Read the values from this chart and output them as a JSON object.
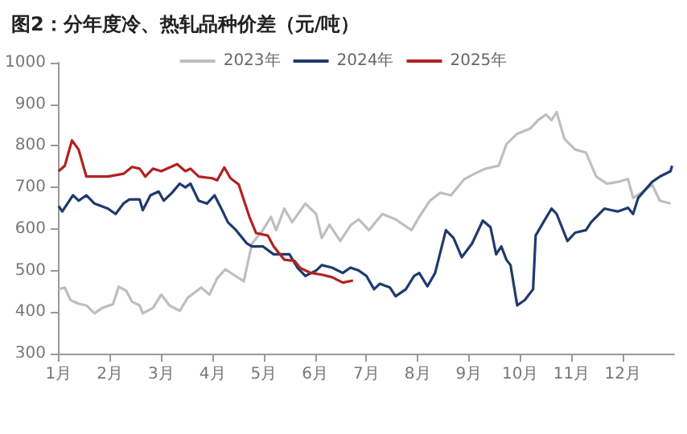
{
  "chart_data": {
    "type": "line",
    "title": "图2：分年度冷、热轧品种价差（元/吨）",
    "xlim": [
      1,
      13
    ],
    "xticks": [
      {
        "value": 1,
        "label": "1月"
      },
      {
        "value": 2,
        "label": "2月"
      },
      {
        "value": 3,
        "label": "3月"
      },
      {
        "value": 4,
        "label": "4月"
      },
      {
        "value": 5,
        "label": "5月"
      },
      {
        "value": 6,
        "label": "6月"
      },
      {
        "value": 7,
        "label": "7月"
      },
      {
        "value": 8,
        "label": "8月"
      },
      {
        "value": 9,
        "label": "9月"
      },
      {
        "value": 10,
        "label": "10月"
      },
      {
        "value": 11,
        "label": "11月"
      },
      {
        "value": 12,
        "label": "12月"
      }
    ],
    "ylim": [
      300,
      1000
    ],
    "yticks": [
      300,
      400,
      500,
      600,
      700,
      800,
      900,
      1000
    ],
    "grid": false,
    "legend": "top",
    "marker": "none",
    "line_style": "solid",
    "series": [
      {
        "name": "2023年",
        "color": "#bfbfbf",
        "x": [
          1,
          1.12,
          1.23,
          1.39,
          1.54,
          1.7,
          1.85,
          2.06,
          2.17,
          2.32,
          2.43,
          2.58,
          2.64,
          2.84,
          3.0,
          3.16,
          3.36,
          3.52,
          3.78,
          3.94,
          4.09,
          4.25,
          4.41,
          4.61,
          4.77,
          4.98,
          5.14,
          5.24,
          5.4,
          5.55,
          5.81,
          6.02,
          6.13,
          6.28,
          6.49,
          6.7,
          6.85,
          7.05,
          7.31,
          7.57,
          7.88,
          8.03,
          8.24,
          8.44,
          8.65,
          8.91,
          9.11,
          9.32,
          9.58,
          9.73,
          9.94,
          10.2,
          10.35,
          10.5,
          10.61,
          10.71,
          10.86,
          11.07,
          11.28,
          11.48,
          11.69,
          11.9,
          12.1,
          12.2,
          12.36,
          12.57,
          12.72,
          12.93
        ],
        "values": [
          455,
          459,
          429,
          420,
          416,
          397,
          410,
          419,
          461,
          451,
          425,
          416,
          397,
          410,
          442,
          416,
          403,
          435,
          459,
          442,
          481,
          503,
          490,
          474,
          565,
          597,
          629,
          597,
          649,
          616,
          661,
          636,
          578,
          610,
          571,
          610,
          623,
          597,
          636,
          623,
          597,
          629,
          668,
          687,
          681,
          720,
          733,
          745,
          752,
          804,
          829,
          842,
          862,
          875,
          862,
          881,
          817,
          791,
          784,
          726,
          709,
          713,
          720,
          675,
          687,
          707,
          668,
          661
        ]
      },
      {
        "name": "2024年",
        "color": "#1f3a6e",
        "x": [
          1,
          1.07,
          1.28,
          1.39,
          1.54,
          1.7,
          1.96,
          2.11,
          2.27,
          2.38,
          2.58,
          2.64,
          2.79,
          2.95,
          3.05,
          3.21,
          3.36,
          3.47,
          3.57,
          3.73,
          3.89,
          4.04,
          4.2,
          4.3,
          4.46,
          4.67,
          4.77,
          4.98,
          5.19,
          5.5,
          5.66,
          5.81,
          6.02,
          6.13,
          6.33,
          6.54,
          6.69,
          6.85,
          7,
          7.15,
          7.26,
          7.46,
          7.57,
          7.77,
          7.93,
          8.03,
          8.19,
          8.34,
          8.55,
          8.7,
          8.86,
          9.06,
          9.27,
          9.42,
          9.53,
          9.63,
          9.73,
          9.81,
          9.94,
          10.09,
          10.25,
          10.3,
          10.45,
          10.61,
          10.71,
          10.92,
          11.07,
          11.28,
          11.38,
          11.64,
          11.9,
          12.1,
          12.2,
          12.3,
          12.57,
          12.72,
          12.93,
          12.96
        ],
        "values": [
          655,
          642,
          681,
          668,
          681,
          661,
          649,
          636,
          662,
          671,
          671,
          645,
          681,
          690,
          668,
          687,
          709,
          700,
          709,
          668,
          661,
          681,
          642,
          616,
          597,
          565,
          558,
          558,
          539,
          539,
          506,
          487,
          500,
          513,
          507,
          494,
          507,
          500,
          487,
          455,
          468,
          459,
          438,
          455,
          487,
          494,
          462,
          494,
          597,
          578,
          532,
          565,
          620,
          604,
          539,
          558,
          526,
          513,
          416,
          429,
          455,
          584,
          616,
          649,
          636,
          571,
          591,
          597,
          616,
          649,
          642,
          651,
          636,
          675,
          713,
          726,
          739,
          752
        ]
      },
      {
        "name": "2025年",
        "color": "#b22222",
        "x": [
          1,
          1.12,
          1.26,
          1.39,
          1.54,
          1.96,
          2.27,
          2.43,
          2.58,
          2.69,
          2.84,
          3.0,
          3.31,
          3.47,
          3.57,
          3.73,
          3.99,
          4.09,
          4.23,
          4.35,
          4.51,
          4.72,
          4.85,
          5.08,
          5.19,
          5.4,
          5.6,
          5.71,
          5.92,
          6.13,
          6.33,
          6.54,
          6.74
        ],
        "values": [
          739,
          752,
          813,
          791,
          726,
          726,
          733,
          749,
          745,
          726,
          745,
          739,
          756,
          739,
          745,
          726,
          722,
          717,
          748,
          722,
          707,
          629,
          590,
          584,
          558,
          526,
          523,
          506,
          494,
          490,
          484,
          471,
          476
        ]
      }
    ]
  }
}
